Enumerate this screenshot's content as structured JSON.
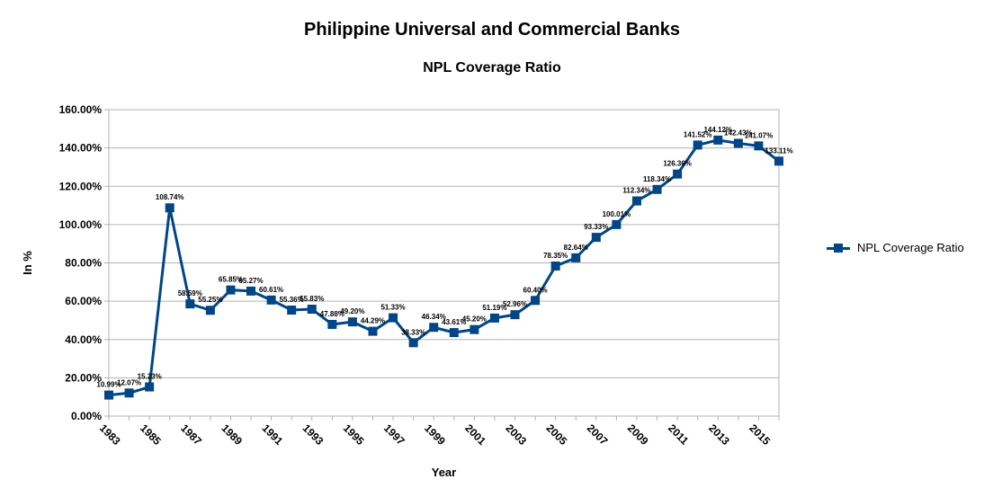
{
  "chart_data": {
    "type": "line",
    "title": "Philippine Universal and Commercial Banks",
    "subtitle": "NPL Coverage Ratio",
    "xlabel": "Year",
    "ylabel": "In %",
    "ylim": [
      0,
      160
    ],
    "y_ticks": [
      "0.00%",
      "20.00%",
      "40.00%",
      "60.00%",
      "80.00%",
      "100.00%",
      "120.00%",
      "140.00%",
      "160.00%"
    ],
    "x_tick_labels": [
      "1983",
      "1985",
      "1987",
      "1989",
      "1991",
      "1993",
      "1995",
      "1997",
      "1999",
      "2001",
      "2003",
      "2005",
      "2007",
      "2009",
      "2011",
      "2013",
      "2015"
    ],
    "grid": true,
    "legend_position": "right",
    "series_color": "#004586",
    "x": [
      1983,
      1984,
      1985,
      1986,
      1987,
      1988,
      1989,
      1990,
      1991,
      1992,
      1993,
      1994,
      1995,
      1996,
      1997,
      1998,
      1999,
      2000,
      2001,
      2002,
      2003,
      2004,
      2005,
      2006,
      2007,
      2008,
      2009,
      2010,
      2011,
      2012,
      2013,
      2014,
      2015,
      2016
    ],
    "series": [
      {
        "name": "NPL Coverage Ratio",
        "values": [
          10.99,
          12.07,
          15.23,
          108.74,
          58.59,
          55.25,
          65.85,
          65.27,
          60.61,
          55.36,
          55.83,
          47.88,
          49.2,
          44.29,
          51.33,
          38.33,
          46.34,
          43.61,
          45.2,
          51.19,
          52.96,
          60.4,
          78.35,
          82.64,
          93.33,
          100.01,
          112.34,
          118.34,
          126.36,
          141.52,
          144.12,
          142.43,
          141.07,
          133.11
        ],
        "labels": [
          "10.99%",
          "12.07%",
          "15.23%",
          "108.74%",
          "58.59%",
          "55.25%",
          "65.85%",
          "65.27%",
          "60.61%",
          "55.36%",
          "55.83%",
          "47.88%",
          "49.20%",
          "44.29%",
          "51.33%",
          "38.33%",
          "46.34%",
          "43.61%",
          "45.20%",
          "51.19%",
          "52.96%",
          "60.40%",
          "78.35%",
          "82.64%",
          "93.33%",
          "100.01%",
          "112.34%",
          "118.34%",
          "126.36%",
          "141.52%",
          "144.12%",
          "142.43%",
          "141.07%",
          "133.11%"
        ]
      }
    ]
  }
}
